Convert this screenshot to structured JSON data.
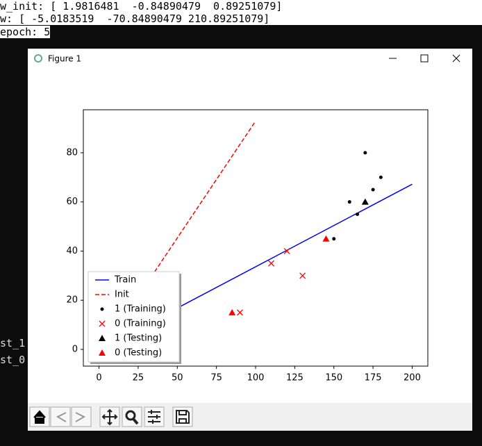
{
  "terminal": {
    "lines": [
      "w_init: [ 1.9816481  -0.84890479  0.89251079]",
      "w: [ -5.0183519  -70.84890479 210.89251079]",
      "epoch: 5"
    ],
    "fragments": [
      "st_1",
      "st_0"
    ]
  },
  "window": {
    "title": "Figure 1"
  },
  "chart_data": {
    "type": "line",
    "xlim": [
      -10,
      210
    ],
    "ylim": [
      -6.8,
      97.5
    ],
    "xticks": [
      0,
      25,
      50,
      75,
      100,
      125,
      150,
      175,
      200
    ],
    "yticks": [
      0,
      20,
      40,
      60,
      80
    ],
    "grid": false,
    "legend": "lower left",
    "series": [
      {
        "name": "Train",
        "color": "#0000ff",
        "style": "solid",
        "x": [
          0,
          200
        ],
        "values": [
          0.02,
          67.2
        ]
      },
      {
        "name": "Init",
        "color": "#ff0000",
        "style": "dashed",
        "x": [
          0,
          100
        ],
        "values": [
          -2.22,
          92.9
        ]
      },
      {
        "name": "1 (Training)",
        "color": "#000000",
        "marker": "dot",
        "x": [
          170,
          180,
          175,
          160,
          165,
          150
        ],
        "values": [
          80,
          70,
          65,
          60,
          55,
          45
        ]
      },
      {
        "name": "0 (Training)",
        "color": "#ff0000",
        "marker": "x",
        "x": [
          110,
          120,
          130,
          90
        ],
        "values": [
          35,
          40,
          30,
          15
        ]
      },
      {
        "name": "1 (Testing)",
        "color": "#000000",
        "marker": "triangle",
        "x": [
          170
        ],
        "values": [
          60
        ]
      },
      {
        "name": "0 (Testing)",
        "color": "#ff0000",
        "marker": "triangle",
        "x": [
          145,
          85
        ],
        "values": [
          45,
          15
        ]
      }
    ]
  }
}
